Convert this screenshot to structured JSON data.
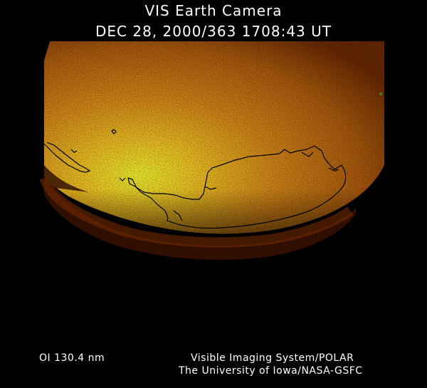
{
  "header": {
    "title": "VIS Earth Camera",
    "subtitle": "DEC 28, 2000/363 1708:43 UT"
  },
  "footer": {
    "wavelength": "OI  130.4 nm",
    "credit_line_1": "Visible Imaging System/POLAR",
    "credit_line_2": "The University of Iowa/NASA-GSFC"
  },
  "colors": {
    "background": "#000000",
    "glow_bright": "#ffff2a",
    "glow_mid": "#f2a01a",
    "glow_dark": "#6e2a00",
    "coastline": "#000000"
  }
}
